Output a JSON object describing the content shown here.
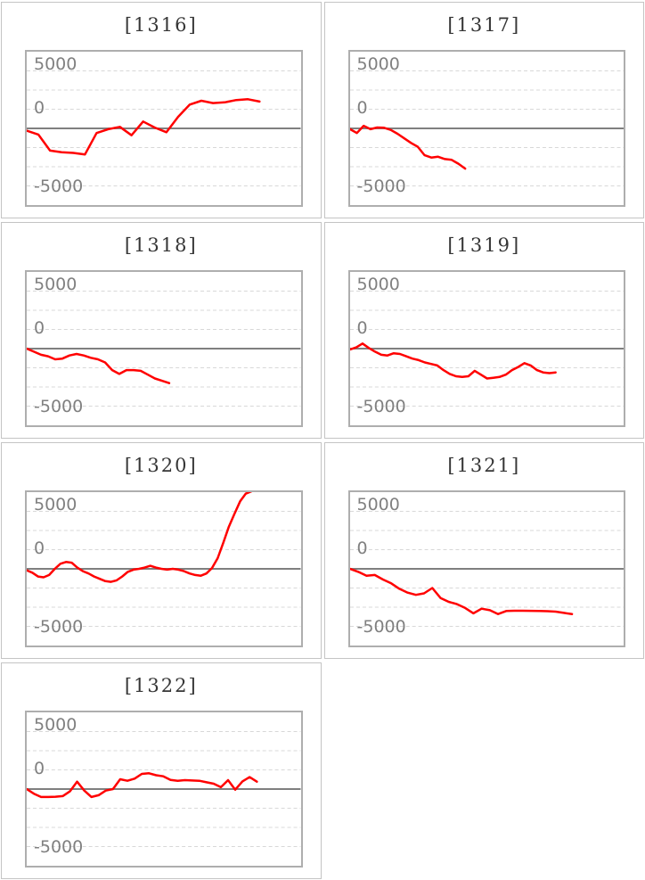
{
  "page": {
    "background": "#ffffff"
  },
  "colors": {
    "series_line": "#ff0000",
    "zero_axis": "#7f7f7f",
    "dashed_grid": "#d8d8d8",
    "plot_border": "#aeaeae",
    "cell_border": "#c4c4c4",
    "tick_label": "#808080",
    "title_text": "#363636"
  },
  "axis": {
    "tick_labels": [
      "5000",
      "0",
      "-5000"
    ],
    "ymax": 5000,
    "ymin": -5000,
    "grid_step": 1250,
    "grid_style": "dashed",
    "zero_line": "solid",
    "legend": "none"
  },
  "chart_data": [
    {
      "type": "line",
      "title": "[1316]",
      "ylim": [
        -5000,
        5000
      ],
      "end_fraction": 0.85,
      "values": [
        -150,
        -400,
        -1450,
        -1550,
        -1600,
        -1700,
        -300,
        -50,
        100,
        -450,
        450,
        50,
        -250,
        750,
        1550,
        1800,
        1650,
        1700,
        1850,
        1900,
        1750
      ]
    },
    {
      "type": "line",
      "title": "[1317]",
      "ylim": [
        -5000,
        5000
      ],
      "end_fraction": 0.42,
      "values": [
        -50,
        -300,
        170,
        -50,
        60,
        40,
        -100,
        -350,
        -650,
        -950,
        -1200,
        -1750,
        -1900,
        -1850,
        -2000,
        -2050,
        -2300,
        -2620
      ]
    },
    {
      "type": "line",
      "title": "[1318]",
      "ylim": [
        -5000,
        5000
      ],
      "end_fraction": 0.52,
      "values": [
        0,
        -200,
        -400,
        -500,
        -700,
        -650,
        -450,
        -350,
        -450,
        -600,
        -700,
        -900,
        -1400,
        -1650,
        -1400,
        -1400,
        -1450,
        -1700,
        -1950,
        -2100,
        -2250
      ]
    },
    {
      "type": "line",
      "title": "[1319]",
      "ylim": [
        -5000,
        5000
      ],
      "end_fraction": 0.75,
      "values": [
        -50,
        80,
        330,
        40,
        -200,
        -400,
        -450,
        -300,
        -350,
        -500,
        -650,
        -750,
        -900,
        -1000,
        -1100,
        -1400,
        -1650,
        -1800,
        -1850,
        -1800,
        -1450,
        -1700,
        -1950,
        -1900,
        -1850,
        -1700,
        -1400,
        -1200,
        -950,
        -1100,
        -1400,
        -1550,
        -1600,
        -1550
      ]
    },
    {
      "type": "line",
      "title": "[1320]",
      "ylim": [
        -5000,
        5000
      ],
      "end_fraction": 0.82,
      "values": [
        -100,
        -250,
        -500,
        -550,
        -400,
        0,
        330,
        450,
        400,
        80,
        -150,
        -300,
        -500,
        -650,
        -800,
        -850,
        -750,
        -500,
        -200,
        -50,
        0,
        80,
        200,
        80,
        0,
        -50,
        0,
        -50,
        -150,
        -300,
        -400,
        -450,
        -300,
        50,
        700,
        1700,
        2750,
        3600,
        4400,
        4900,
        5050
      ]
    },
    {
      "type": "line",
      "title": "[1321]",
      "ylim": [
        -5000,
        5000
      ],
      "end_fraction": 0.81,
      "values": [
        0,
        -200,
        -450,
        -400,
        -700,
        -950,
        -1300,
        -1550,
        -1700,
        -1600,
        -1250,
        -1900,
        -2150,
        -2300,
        -2550,
        -2900,
        -2600,
        -2700,
        -2950,
        -2750,
        -2730,
        -2730,
        -2740,
        -2750,
        -2760,
        -2790,
        -2870,
        -2950
      ]
    },
    {
      "type": "line",
      "title": "[1322]",
      "ylim": [
        -5000,
        5000
      ],
      "end_fraction": 0.84,
      "values": [
        0,
        -300,
        -520,
        -520,
        -500,
        -460,
        -150,
        480,
        -100,
        -520,
        -400,
        -100,
        0,
        640,
        540,
        680,
        990,
        1030,
        900,
        830,
        600,
        540,
        580,
        560,
        540,
        440,
        350,
        120,
        580,
        -40,
        500,
        780,
        480
      ]
    }
  ]
}
